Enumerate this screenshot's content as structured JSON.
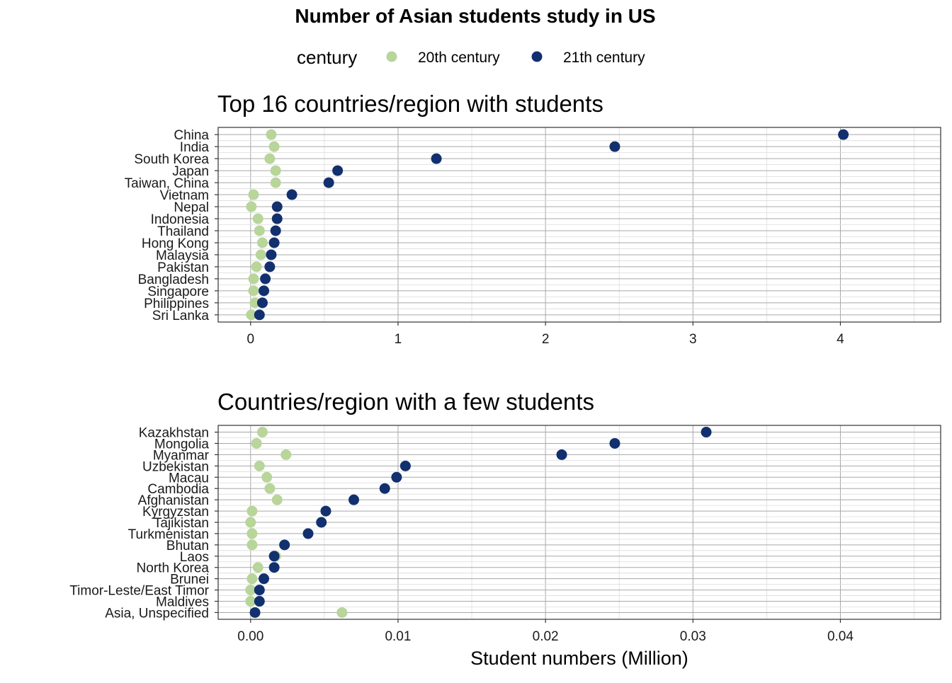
{
  "chart_data": {
    "type": "scatter",
    "title": "Number of Asian students study in US",
    "legend": {
      "title": "century",
      "position": "top",
      "entries": [
        {
          "name": "20th century",
          "color": "#b8d59a"
        },
        {
          "name": "21th century",
          "color": "#12306e"
        }
      ]
    },
    "xlabel": "Student numbers (Million)",
    "panels": [
      {
        "title": "Top 16 countries/region with students",
        "xlim": [
          -0.22,
          4.68
        ],
        "xticks": [
          0,
          1,
          2,
          3,
          4
        ],
        "xtick_labels": [
          "0",
          "1",
          "2",
          "3",
          "4"
        ],
        "grid": true,
        "categories": [
          "China",
          "India",
          "South Korea",
          "Japan",
          "Taiwan, China",
          "Vietnam",
          "Nepal",
          "Indonesia",
          "Thailand",
          "Hong Kong",
          "Malaysia",
          "Pakistan",
          "Bangladesh",
          "Singapore",
          "Philippines",
          "Sri Lanka"
        ],
        "series": [
          {
            "name": "20th century",
            "values": [
              0.14,
              0.16,
              0.13,
              0.17,
              0.17,
              0.02,
              0.005,
              0.05,
              0.06,
              0.08,
              0.07,
              0.04,
              0.02,
              0.02,
              0.03,
              0.005
            ]
          },
          {
            "name": "21th century",
            "values": [
              4.02,
              2.47,
              1.26,
              0.59,
              0.53,
              0.28,
              0.18,
              0.18,
              0.17,
              0.16,
              0.14,
              0.13,
              0.1,
              0.09,
              0.08,
              0.06
            ]
          }
        ]
      },
      {
        "title": "Countries/region with a few students",
        "xlim": [
          -0.0022,
          0.0468
        ],
        "xticks": [
          0,
          0.01,
          0.02,
          0.03,
          0.04
        ],
        "xtick_labels": [
          "0.00",
          "0.01",
          "0.02",
          "0.03",
          "0.04"
        ],
        "grid": true,
        "categories": [
          "Kazakhstan",
          "Mongolia",
          "Myanmar",
          "Uzbekistan",
          "Macau",
          "Cambodia",
          "Afghanistan",
          "Kyrgyzstan",
          "Tajikistan",
          "Turkmenistan",
          "Bhutan",
          "Laos",
          "North Korea",
          "Brunei",
          "Timor-Leste/East Timor",
          "Maldives",
          "Asia, Unspecified"
        ],
        "series": [
          {
            "name": "20th century",
            "values": [
              0.0008,
              0.0004,
              0.0024,
              0.0006,
              0.0011,
              0.0013,
              0.0018,
              0.0001,
              0.0,
              0.0001,
              0.0001,
              0.0017,
              0.0005,
              0.0001,
              0.0,
              0.0,
              0.0062
            ]
          },
          {
            "name": "21th century",
            "values": [
              0.0309,
              0.0247,
              0.0211,
              0.0105,
              0.0099,
              0.0091,
              0.007,
              0.0051,
              0.0048,
              0.0039,
              0.0023,
              0.0016,
              0.0016,
              0.0009,
              0.0006,
              0.0006,
              0.0003
            ]
          }
        ]
      }
    ]
  }
}
